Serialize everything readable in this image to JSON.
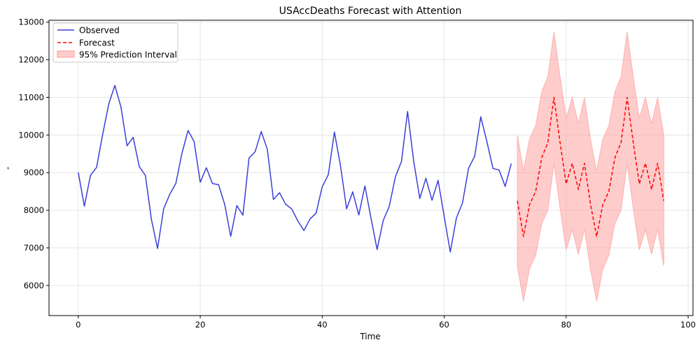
{
  "chart_data": {
    "type": "line",
    "title": "USAccDeaths Forecast with Attention",
    "xlabel": "Time",
    "ylabel": "-",
    "xlim": [
      -4.8,
      100.8
    ],
    "ylim": [
      5200,
      13050
    ],
    "xticks": [
      0,
      20,
      40,
      60,
      80,
      100
    ],
    "yticks": [
      6000,
      7000,
      8000,
      9000,
      10000,
      11000,
      12000,
      13000
    ],
    "grid": true,
    "legend_position": "top-left",
    "series": [
      {
        "name": "Observed",
        "style": "solid",
        "color": "#3a3fd9",
        "x": [
          0,
          1,
          2,
          3,
          4,
          5,
          6,
          7,
          8,
          9,
          10,
          11,
          12,
          13,
          14,
          15,
          16,
          17,
          18,
          19,
          20,
          21,
          22,
          23,
          24,
          25,
          26,
          27,
          28,
          29,
          30,
          31,
          32,
          33,
          34,
          35,
          36,
          37,
          38,
          39,
          40,
          41,
          42,
          43,
          44,
          45,
          46,
          47,
          48,
          49,
          50,
          51,
          52,
          53,
          54,
          55,
          56,
          57,
          58,
          59,
          60,
          61,
          62,
          63,
          64,
          65,
          66,
          67,
          68,
          69,
          70,
          71
        ],
        "values": [
          9007,
          8106,
          8928,
          9137,
          10017,
          10826,
          11317,
          10744,
          9713,
          9938,
          9161,
          8927,
          7750,
          6981,
          8038,
          8422,
          8714,
          9512,
          10120,
          9823,
          8743,
          9129,
          8710,
          8680,
          8162,
          7306,
          8124,
          7870,
          9387,
          9556,
          10093,
          9620,
          8285,
          8466,
          8160,
          8034,
          7717,
          7461,
          7767,
          7925,
          8623,
          8945,
          10078,
          9179,
          8037,
          8488,
          7874,
          8647,
          7792,
          6957,
          7726,
          8106,
          8890,
          9299,
          10625,
          9302,
          8314,
          8850,
          8265,
          8796,
          7836,
          6892,
          7791,
          8192,
          9115,
          9434,
          10484,
          9827,
          9110,
          9070,
          8633,
          9240
        ]
      },
      {
        "name": "Forecast",
        "style": "dashed",
        "color": "#ff0000",
        "x": [
          72,
          73,
          74,
          75,
          76,
          77,
          78,
          79,
          80,
          81,
          82,
          83,
          84,
          85,
          86,
          87,
          88,
          89,
          90,
          91,
          92,
          93,
          94,
          95,
          96
        ],
        "values": [
          8250,
          7300,
          8150,
          8500,
          9400,
          9800,
          11000,
          9800,
          8700,
          9250,
          8550,
          9250,
          8150,
          7300,
          8150,
          8500,
          9400,
          9800,
          11000,
          9800,
          8700,
          9250,
          8550,
          9250,
          8250
        ]
      }
    ],
    "interval": {
      "name": "95% Prediction Interval",
      "color": "#ff9999",
      "x": [
        72,
        73,
        74,
        75,
        76,
        77,
        78,
        79,
        80,
        81,
        82,
        83,
        84,
        85,
        86,
        87,
        88,
        89,
        90,
        91,
        92,
        93,
        94,
        95,
        96
      ],
      "lower": [
        6500,
        5580,
        6450,
        6800,
        7650,
        8000,
        9250,
        8050,
        6950,
        7480,
        6830,
        7500,
        6420,
        5580,
        6430,
        6800,
        7650,
        8000,
        9250,
        8050,
        6950,
        7480,
        6830,
        7500,
        6520
      ],
      "upper": [
        10000,
        9050,
        9900,
        10250,
        11150,
        11550,
        12750,
        11550,
        10450,
        11000,
        10300,
        11000,
        9880,
        9050,
        9880,
        10250,
        11150,
        11550,
        12750,
        11550,
        10450,
        11000,
        10300,
        11000,
        10000
      ]
    }
  }
}
